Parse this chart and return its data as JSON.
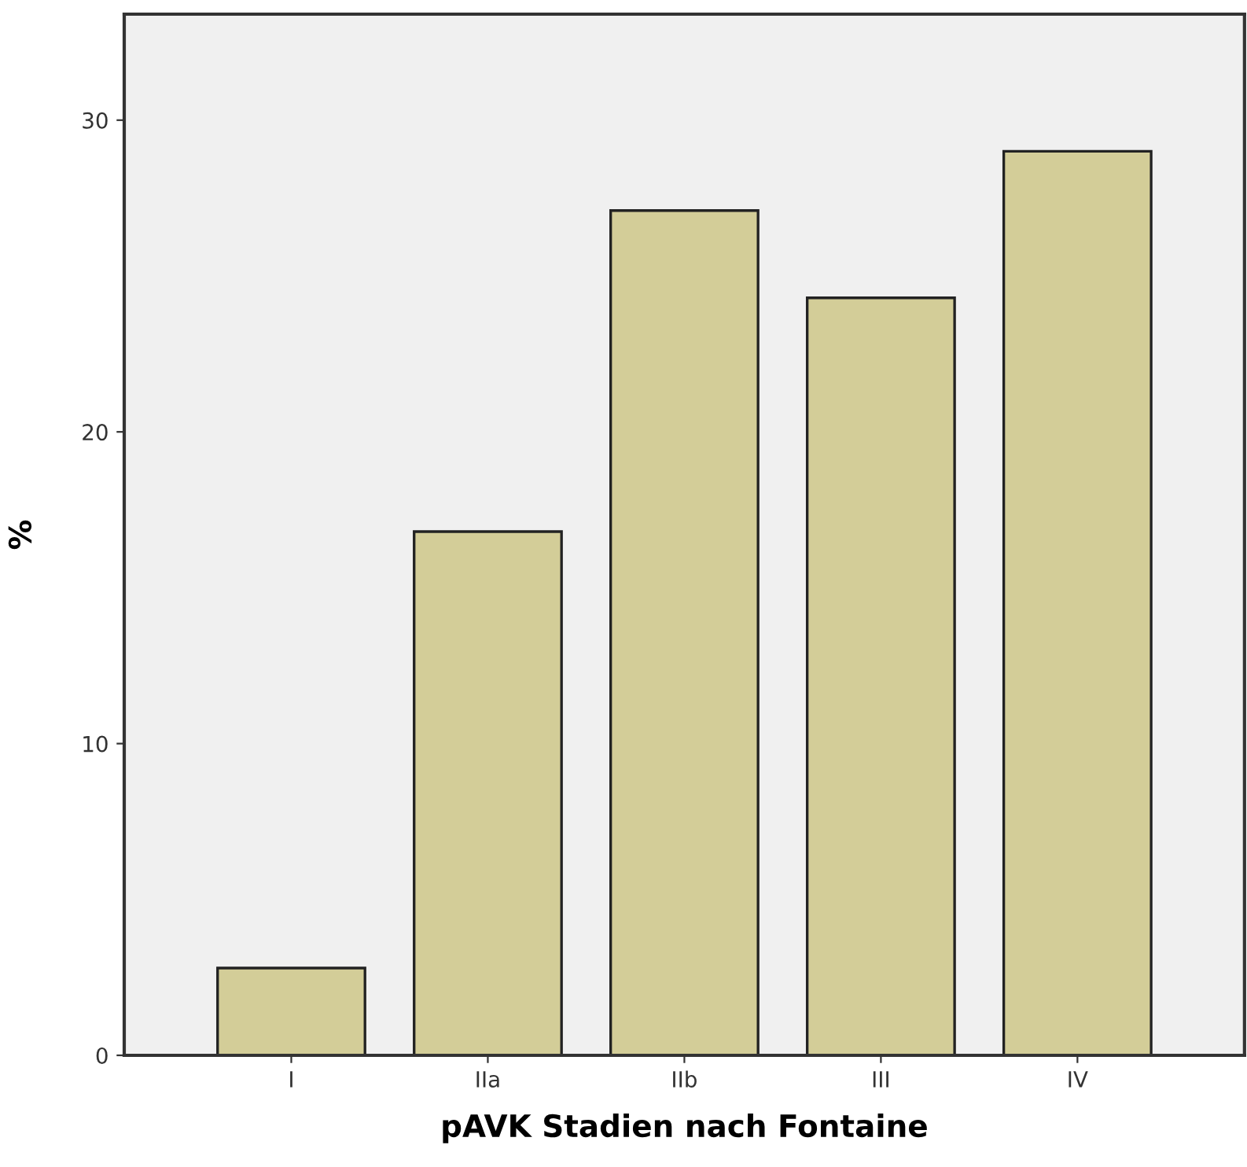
{
  "chart_data": {
    "type": "bar",
    "xlabel": "pAVK Stadien nach Fontaine",
    "ylabel": "%",
    "categories": [
      "I",
      "IIa",
      "IIb",
      "III",
      "IV"
    ],
    "values": [
      2.8,
      16.8,
      27.1,
      24.3,
      29.0
    ],
    "color": "#d3cd98",
    "ylim": [
      0,
      33.4
    ],
    "yticks": [
      0,
      10,
      20,
      30
    ],
    "grid": false
  }
}
